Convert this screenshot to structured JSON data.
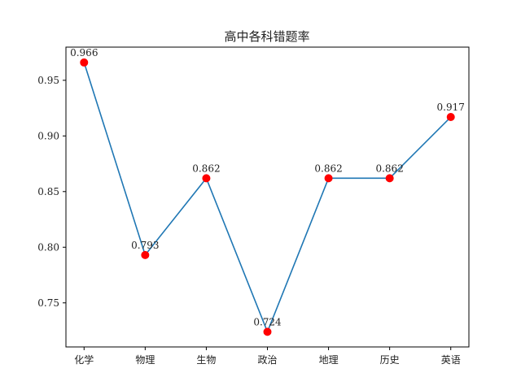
{
  "chart_data": {
    "type": "line",
    "title": "高中各科错题率",
    "xlabel": "",
    "ylabel": "",
    "categories": [
      "化学",
      "物理",
      "生物",
      "政治",
      "地理",
      "历史",
      "英语"
    ],
    "values": [
      0.966,
      0.793,
      0.862,
      0.724,
      0.862,
      0.862,
      0.917
    ],
    "data_labels": [
      "0.966",
      "0.793",
      "0.862",
      "0.724",
      "0.862",
      "0.862",
      "0.917"
    ],
    "yticks": [
      0.75,
      0.8,
      0.85,
      0.9,
      0.95
    ],
    "ytick_labels": [
      "0.75",
      "0.80",
      "0.85",
      "0.90",
      "0.95"
    ],
    "ylim": [
      0.7104,
      0.9798
    ],
    "grid": false,
    "line_color": "#1f77b4",
    "marker_color": "#ff0000"
  }
}
